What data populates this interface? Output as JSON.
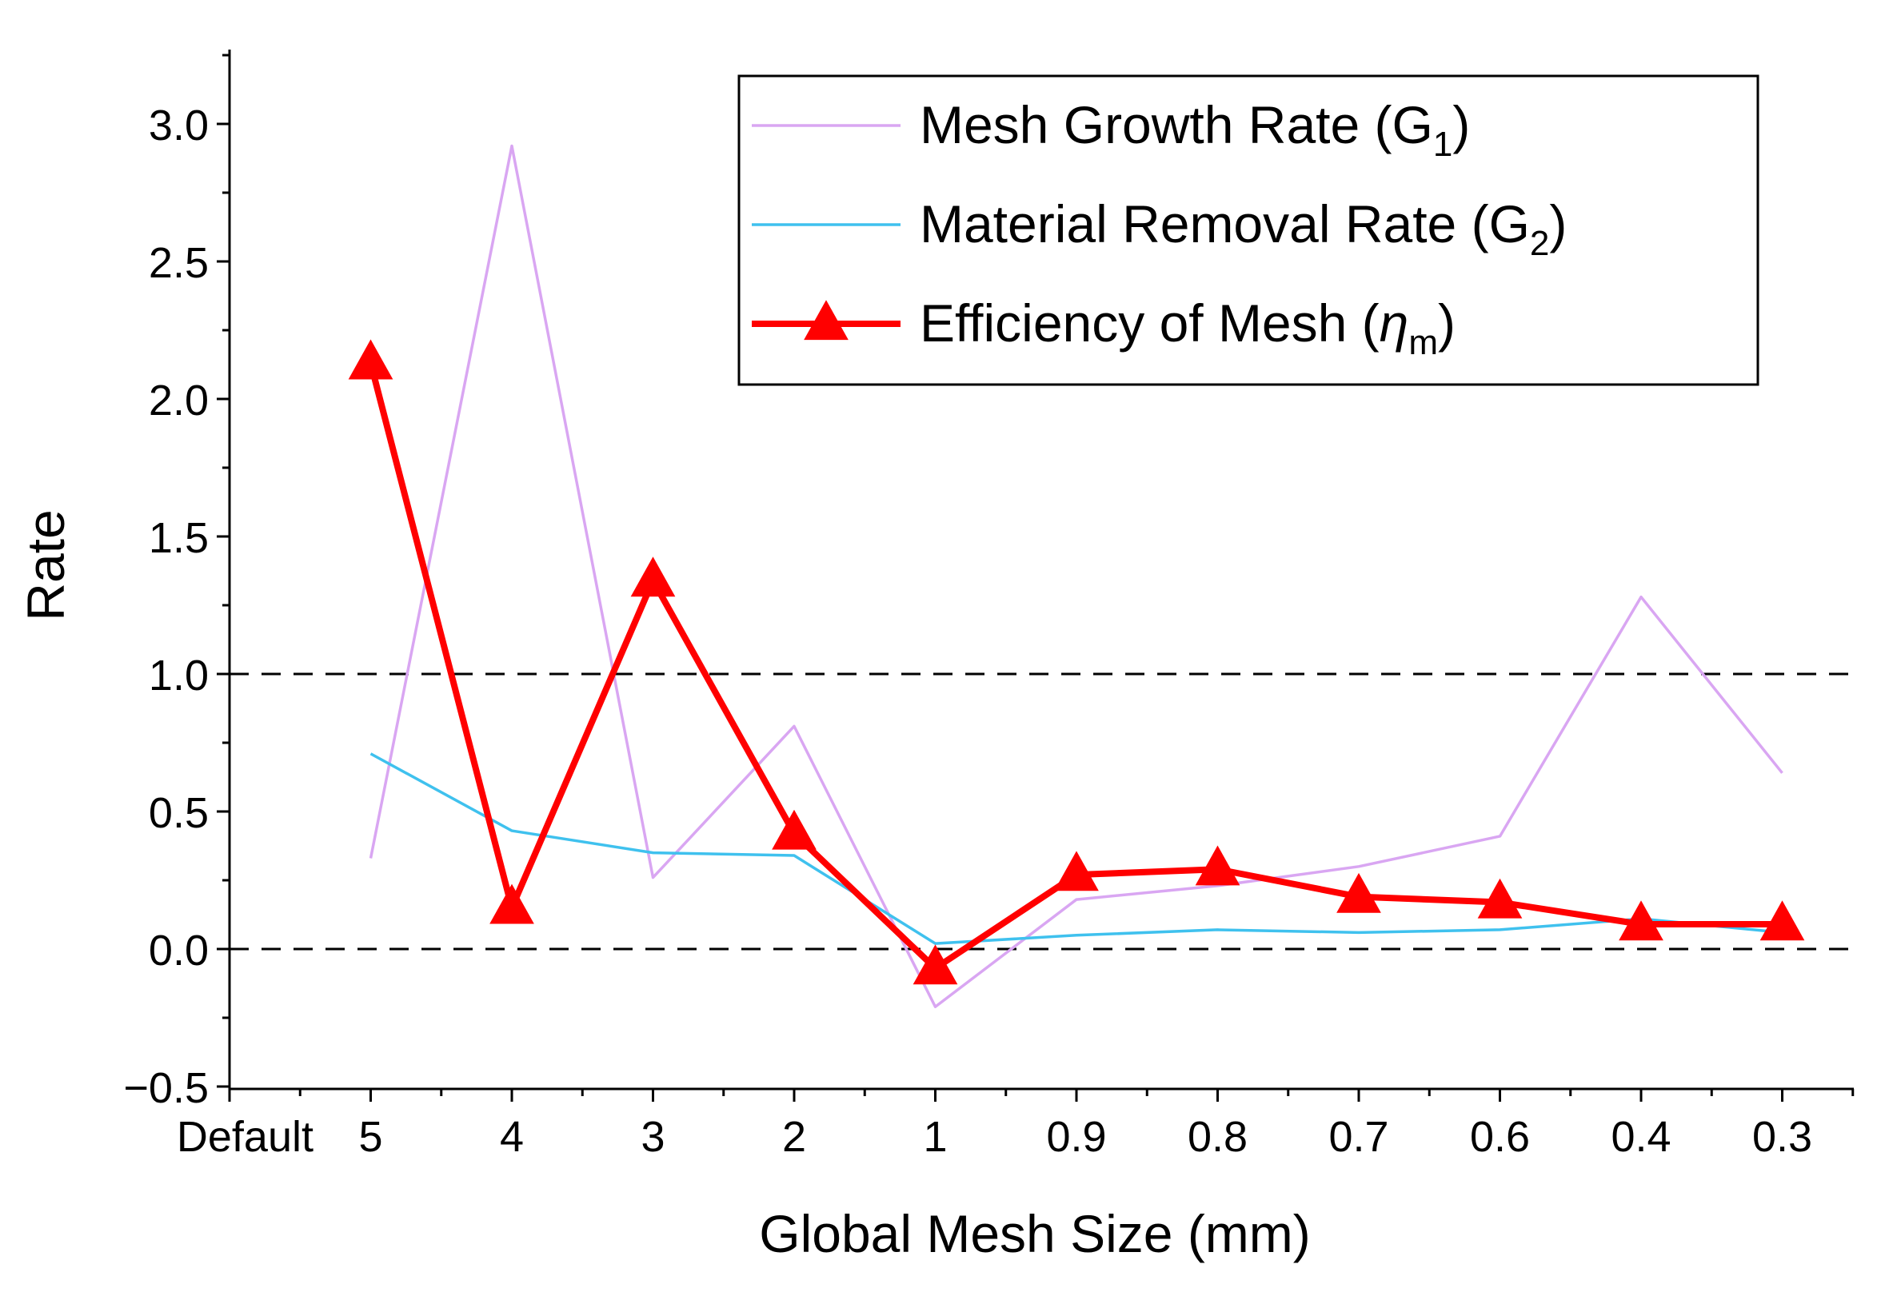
{
  "chart_data": {
    "type": "line",
    "xlabel": "Global Mesh Size (mm)",
    "ylabel": "Rate",
    "categories": [
      "Default",
      "5",
      "4",
      "3",
      "2",
      "1",
      "0.9",
      "0.8",
      "0.7",
      "0.6",
      "0.4",
      "0.3"
    ],
    "ylim": [
      -0.5,
      3.25
    ],
    "yticks": [
      -0.5,
      0.0,
      0.5,
      1.0,
      1.5,
      2.0,
      2.5,
      3.0
    ],
    "ytick_labels": [
      "−0.5",
      "0.0",
      "0.5",
      "1.0",
      "1.5",
      "2.0",
      "2.5",
      "3.0"
    ],
    "reference_lines": [
      1.0,
      0.0
    ],
    "grid": false,
    "legend_position": "top-right",
    "series": [
      {
        "name": "Mesh Growth Rate (G",
        "subscript": "1",
        "suffix": ")",
        "color": "#d9a6f2",
        "marker": "none",
        "values": [
          null,
          0.33,
          2.92,
          0.26,
          0.81,
          -0.21,
          0.18,
          0.23,
          0.3,
          0.41,
          1.28,
          0.64
        ]
      },
      {
        "name": "Material Removal Rate (G",
        "subscript": "2",
        "suffix": ")",
        "color": "#3fc1ee",
        "marker": "none",
        "values": [
          null,
          0.71,
          0.43,
          0.35,
          0.34,
          0.02,
          0.05,
          0.07,
          0.06,
          0.07,
          0.11,
          0.06
        ]
      },
      {
        "name": "Efficiency of Mesh (",
        "symbol": "η",
        "subscript": "m",
        "suffix": ")",
        "color": "#ff0000",
        "marker": "triangle",
        "values": [
          null,
          2.13,
          0.15,
          1.34,
          0.42,
          -0.07,
          0.27,
          0.29,
          0.19,
          0.17,
          0.09,
          0.09
        ]
      }
    ]
  }
}
